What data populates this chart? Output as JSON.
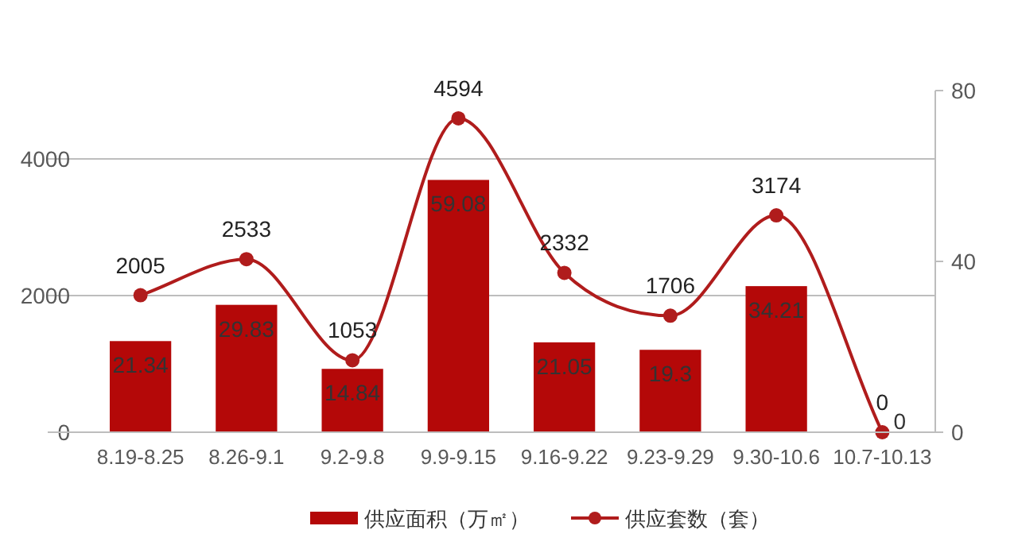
{
  "chart_data": {
    "type": "bar",
    "categories": [
      "8.19-8.25",
      "8.26-9.1",
      "9.2-9.8",
      "9.9-9.15",
      "9.16-9.22",
      "9.23-9.29",
      "9.30-10.6",
      "10.7-10.13"
    ],
    "series": [
      {
        "name": "供应面积（万㎡）",
        "axis": "y2",
        "color": "#b40808",
        "values": [
          21.34,
          29.83,
          14.84,
          59.08,
          21.05,
          19.3,
          34.21,
          0
        ]
      },
      {
        "name": "供应套数（套）",
        "type": "line",
        "axis": "y",
        "color": "#b01c1c",
        "marker": "circle",
        "values": [
          2005,
          2533,
          1053,
          4594,
          2332,
          1706,
          3174,
          0
        ]
      }
    ],
    "ylim": [
      0,
      5000
    ],
    "yticks": [
      0,
      2000,
      4000
    ],
    "y2lim": [
      0,
      80
    ],
    "y2ticks": [
      0,
      40,
      80
    ],
    "grid": "y",
    "legend": "bottom",
    "data_labels": true
  }
}
